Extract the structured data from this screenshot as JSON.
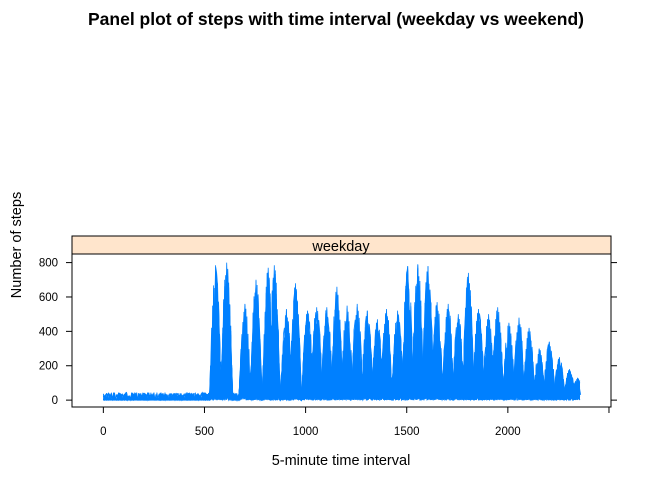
{
  "chart_data": {
    "type": "line",
    "title": "Panel plot of steps with time interval (weekday vs weekend)",
    "xlabel": "5-minute time interval",
    "ylabel": "Number of steps",
    "panel": "weekday",
    "xlim": [
      -155,
      2510
    ],
    "ylim": [
      -40,
      850
    ],
    "xticks": [
      0,
      500,
      1000,
      1500,
      2000
    ],
    "yticks": [
      0,
      200,
      400,
      600,
      800
    ],
    "grid": false,
    "legend": "none",
    "colors": {
      "line": "#0080ff",
      "strip": "#ffe5cc",
      "frame": "#000000"
    },
    "series": [
      {
        "step_interval": 5,
        "x_range": [
          0,
          2355
        ],
        "peaks": [
          {
            "x": 555,
            "y": 785
          },
          {
            "x": 610,
            "y": 800
          },
          {
            "x": 700,
            "y": 560
          },
          {
            "x": 755,
            "y": 700
          },
          {
            "x": 815,
            "y": 770
          },
          {
            "x": 845,
            "y": 785
          },
          {
            "x": 905,
            "y": 530
          },
          {
            "x": 950,
            "y": 680
          },
          {
            "x": 1010,
            "y": 520
          },
          {
            "x": 1055,
            "y": 540
          },
          {
            "x": 1105,
            "y": 540
          },
          {
            "x": 1155,
            "y": 660
          },
          {
            "x": 1205,
            "y": 550
          },
          {
            "x": 1255,
            "y": 560
          },
          {
            "x": 1305,
            "y": 520
          },
          {
            "x": 1355,
            "y": 470
          },
          {
            "x": 1400,
            "y": 530
          },
          {
            "x": 1455,
            "y": 520
          },
          {
            "x": 1505,
            "y": 780
          },
          {
            "x": 1555,
            "y": 790
          },
          {
            "x": 1605,
            "y": 780
          },
          {
            "x": 1650,
            "y": 570
          },
          {
            "x": 1705,
            "y": 560
          },
          {
            "x": 1755,
            "y": 500
          },
          {
            "x": 1805,
            "y": 740
          },
          {
            "x": 1855,
            "y": 530
          },
          {
            "x": 1905,
            "y": 500
          },
          {
            "x": 1950,
            "y": 540
          },
          {
            "x": 2005,
            "y": 450
          },
          {
            "x": 2055,
            "y": 480
          },
          {
            "x": 2105,
            "y": 420
          },
          {
            "x": 2155,
            "y": 300
          },
          {
            "x": 2205,
            "y": 340
          },
          {
            "x": 2255,
            "y": 250
          },
          {
            "x": 2305,
            "y": 180
          },
          {
            "x": 2345,
            "y": 130
          }
        ]
      }
    ]
  }
}
